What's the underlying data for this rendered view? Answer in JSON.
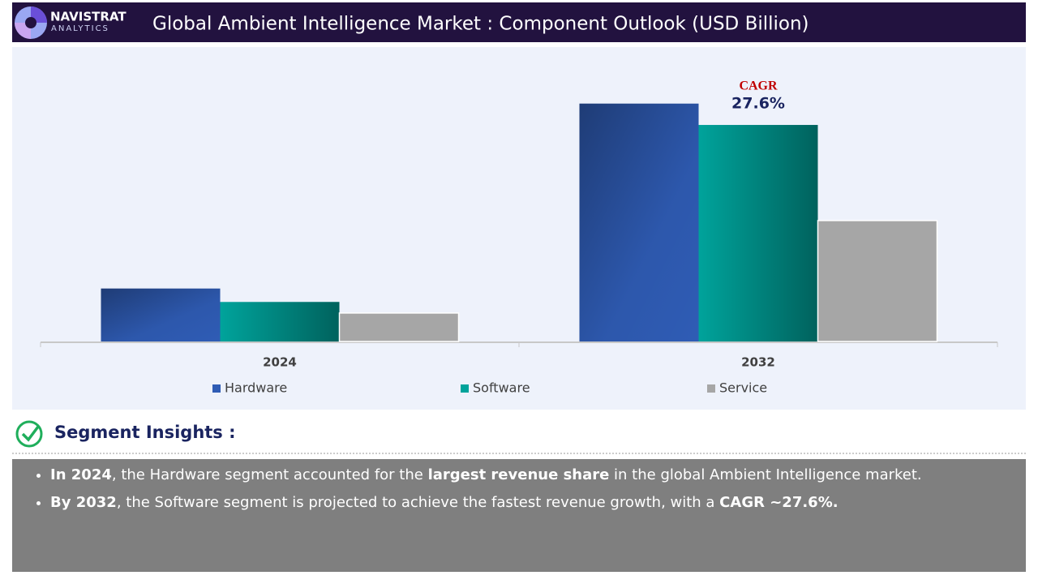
{
  "header": {
    "logo_name": "NAVISTRAT",
    "logo_sub": "ANALYTICS"
  },
  "chart_data": {
    "type": "bar",
    "title": "Global Ambient Intelligence Market : Component Outlook (USD Billion)",
    "categories": [
      "2024",
      "2032"
    ],
    "series": [
      {
        "name": "Hardware",
        "color": "#2f5cb5",
        "values": [
          6.7,
          30.1
        ]
      },
      {
        "name": "Software",
        "color": "#00a39b",
        "values": [
          5.0,
          27.4
        ]
      },
      {
        "name": "Service",
        "color": "#a6a6a6",
        "values": [
          3.6,
          15.3
        ]
      }
    ],
    "ylim": [
      0,
      35
    ],
    "annotations": [
      {
        "text": "CAGR",
        "color": "#c00000"
      },
      {
        "text": "27.6%",
        "color": "#1a2460"
      }
    ]
  },
  "insights": {
    "title": "Segment Insights :",
    "bullets": [
      [
        {
          "text": "In 2024",
          "bold": true
        },
        {
          "text": ", the Hardware segment accounted for the ",
          "bold": false
        },
        {
          "text": "largest revenue share",
          "bold": true
        },
        {
          "text": " in the global Ambient Intelligence market.",
          "bold": false
        }
      ],
      [
        {
          "text": "By 2032",
          "bold": true
        },
        {
          "text": ", the Software segment is projected to achieve the fastest revenue growth, with a ",
          "bold": false
        },
        {
          "text": "CAGR ~27.6%.",
          "bold": true
        }
      ]
    ]
  }
}
